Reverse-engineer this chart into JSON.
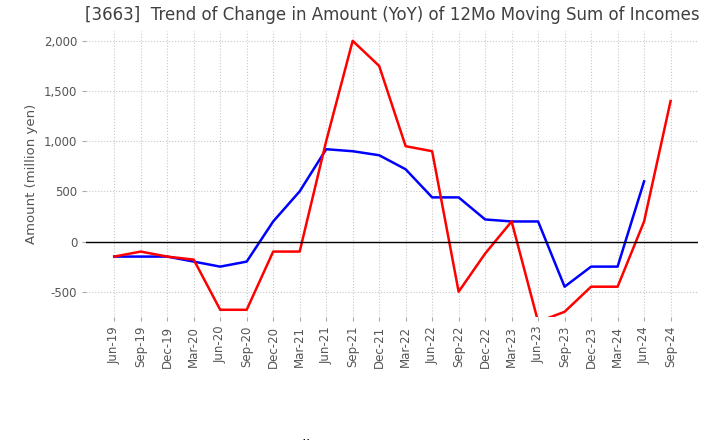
{
  "title": "[3663]  Trend of Change in Amount (YoY) of 12Mo Moving Sum of Incomes",
  "ylabel": "Amount (million yen)",
  "ylim": [
    -750,
    2100
  ],
  "yticks": [
    -500,
    0,
    500,
    1000,
    1500,
    2000
  ],
  "background_color": "#ffffff",
  "grid_color": "#c8c8c8",
  "x_labels": [
    "Jun-19",
    "Sep-19",
    "Dec-19",
    "Mar-20",
    "Jun-20",
    "Sep-20",
    "Dec-20",
    "Mar-21",
    "Jun-21",
    "Sep-21",
    "Dec-21",
    "Mar-22",
    "Jun-22",
    "Sep-22",
    "Dec-22",
    "Mar-23",
    "Jun-23",
    "Sep-23",
    "Dec-23",
    "Mar-24",
    "Jun-24",
    "Sep-24"
  ],
  "ordinary_income": [
    -150,
    -150,
    -150,
    -200,
    -250,
    -200,
    200,
    500,
    920,
    900,
    860,
    720,
    440,
    440,
    220,
    200,
    200,
    -450,
    -250,
    -250,
    600,
    null
  ],
  "net_income": [
    -150,
    -100,
    -150,
    -180,
    -680,
    -680,
    -100,
    -100,
    1000,
    2000,
    1750,
    950,
    900,
    -500,
    -120,
    200,
    -800,
    -700,
    -450,
    -450,
    200,
    1400
  ],
  "ordinary_color": "#0000ff",
  "net_color": "#ff0000",
  "title_color": "#404040",
  "title_fontsize": 12,
  "legend_fontsize": 10,
  "tick_fontsize": 8.5
}
